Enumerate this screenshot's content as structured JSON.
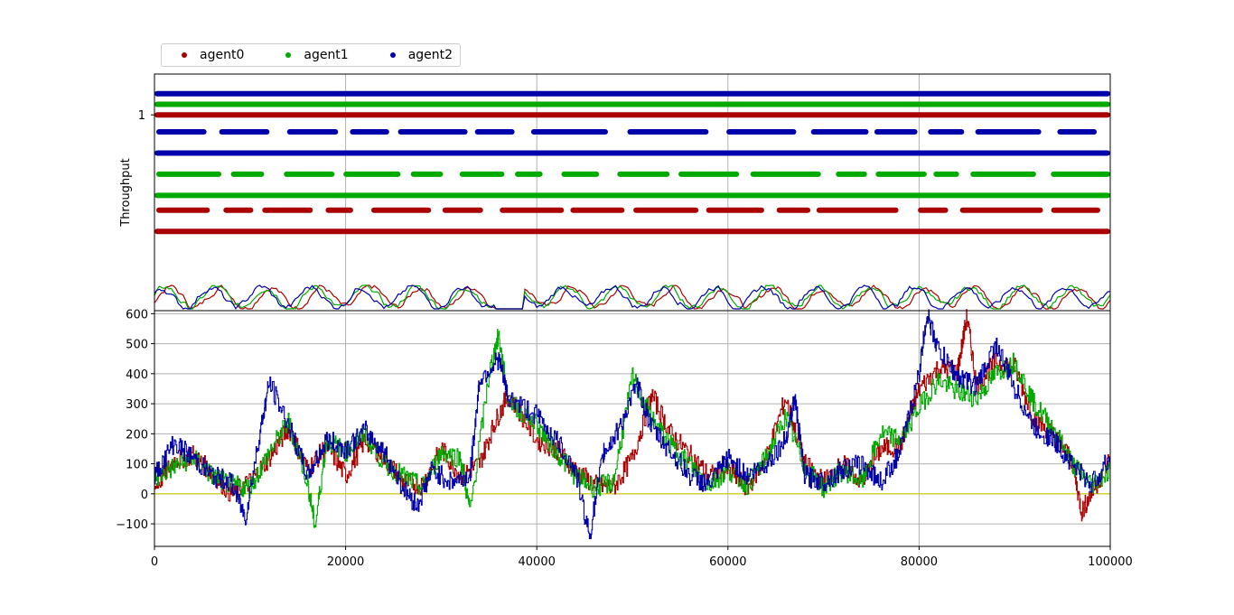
{
  "chart_data": [
    {
      "type": "scatter",
      "panel": "top",
      "ylabel": "Throughput",
      "ytick_labels": [
        "1"
      ],
      "legend": {
        "placement": "top-left, outside above",
        "entries": [
          "agent0",
          "agent1",
          "agent2"
        ]
      },
      "grid": true,
      "series": [
        {
          "name": "agent0",
          "color": "#aa0000",
          "rows": [
            {
              "y": 1.0,
              "dense": true
            },
            {
              "y": 0.55,
              "dense": false
            },
            {
              "y": 0.45,
              "dense": true
            }
          ]
        },
        {
          "name": "agent1",
          "color": "#00aa00",
          "rows": [
            {
              "y": 1.05,
              "dense": true
            },
            {
              "y": 0.72,
              "dense": false
            },
            {
              "y": 0.62,
              "dense": true
            }
          ]
        },
        {
          "name": "agent2",
          "color": "#0000aa",
          "rows": [
            {
              "y": 1.1,
              "dense": true
            },
            {
              "y": 0.92,
              "dense": false
            },
            {
              "y": 0.82,
              "dense": true
            }
          ]
        }
      ],
      "xlim": [
        0,
        100000
      ]
    },
    {
      "type": "line",
      "panel": "middle",
      "grid": true,
      "xlim": [
        0,
        100000
      ],
      "series": [
        {
          "name": "agent0",
          "color": "#aa0000"
        },
        {
          "name": "agent1",
          "color": "#00aa00"
        },
        {
          "name": "agent2",
          "color": "#0000aa"
        }
      ]
    },
    {
      "type": "line",
      "panel": "bottom",
      "xlim": [
        0,
        100000
      ],
      "ylim": [
        -175,
        610
      ],
      "grid": true,
      "x_ticks": [
        0,
        20000,
        40000,
        60000,
        80000,
        100000
      ],
      "x_tick_labels": [
        "0",
        "20000",
        "40000",
        "60000",
        "80000",
        "100000"
      ],
      "y_ticks": [
        -100,
        0,
        100,
        200,
        300,
        400,
        500,
        600
      ],
      "y_tick_labels": [
        "−100",
        "0",
        "100",
        "200",
        "300",
        "400",
        "500",
        "600"
      ],
      "baseline": {
        "color": "#cccc00",
        "value": 0
      },
      "series": [
        {
          "name": "agent0",
          "color": "#aa0000",
          "x": [
            0,
            2000,
            4000,
            6000,
            8000,
            10000,
            12000,
            14000,
            16000,
            18000,
            20000,
            22000,
            24000,
            26000,
            28000,
            30000,
            32000,
            34000,
            35500,
            37000,
            40000,
            42000,
            44000,
            46000,
            48000,
            50000,
            52000,
            54000,
            56000,
            58000,
            60000,
            62000,
            64000,
            66000,
            68000,
            70000,
            72000,
            74000,
            76000,
            78000,
            80000,
            82000,
            84000,
            85000,
            86000,
            88000,
            90000,
            92000,
            94000,
            96000,
            97000,
            98000,
            100000
          ],
          "y": [
            20,
            110,
            130,
            70,
            0,
            40,
            120,
            220,
            80,
            160,
            60,
            180,
            120,
            40,
            30,
            150,
            60,
            100,
            230,
            330,
            180,
            150,
            80,
            30,
            20,
            120,
            330,
            200,
            130,
            60,
            80,
            20,
            120,
            320,
            100,
            40,
            100,
            40,
            150,
            160,
            350,
            420,
            410,
            590,
            360,
            440,
            420,
            250,
            200,
            110,
            -60,
            0,
            120
          ]
        },
        {
          "name": "agent1",
          "color": "#00aa00",
          "x": [
            0,
            2000,
            4000,
            6000,
            8000,
            10000,
            12000,
            14000,
            16000,
            16800,
            18000,
            20000,
            22000,
            24000,
            26000,
            28000,
            30000,
            32000,
            33000,
            35000,
            36000,
            37000,
            40000,
            42000,
            44000,
            46000,
            48000,
            50000,
            52000,
            54000,
            56000,
            58000,
            60000,
            62000,
            64000,
            66000,
            68000,
            70000,
            72000,
            74000,
            76000,
            78000,
            80000,
            82000,
            84000,
            86000,
            88000,
            90000,
            92000,
            94000,
            96000,
            98000,
            100000
          ],
          "y": [
            50,
            90,
            120,
            60,
            30,
            20,
            140,
            240,
            40,
            -110,
            180,
            140,
            200,
            100,
            60,
            20,
            140,
            120,
            -60,
            400,
            530,
            310,
            230,
            140,
            60,
            20,
            40,
            390,
            250,
            160,
            100,
            30,
            80,
            30,
            120,
            260,
            90,
            20,
            80,
            40,
            200,
            180,
            290,
            380,
            340,
            320,
            400,
            440,
            300,
            220,
            100,
            30,
            80
          ]
        },
        {
          "name": "agent2",
          "color": "#0000aa",
          "x": [
            0,
            2000,
            4000,
            6000,
            8000,
            9500,
            11000,
            12000,
            14000,
            16000,
            18000,
            20000,
            22000,
            24000,
            26000,
            27500,
            29000,
            31000,
            33000,
            34000,
            36000,
            37000,
            40000,
            42000,
            44000,
            45500,
            47000,
            48000,
            50500,
            52000,
            54000,
            56000,
            58000,
            60000,
            62000,
            64000,
            66000,
            67000,
            68000,
            70000,
            72000,
            74000,
            76000,
            78000,
            80000,
            80800,
            82000,
            84000,
            86000,
            88000,
            90000,
            92000,
            94000,
            96000,
            98000,
            100000
          ],
          "y": [
            60,
            170,
            120,
            60,
            40,
            -80,
            200,
            370,
            230,
            60,
            180,
            150,
            210,
            140,
            20,
            -40,
            80,
            40,
            60,
            380,
            450,
            320,
            260,
            180,
            80,
            -140,
            140,
            180,
            360,
            220,
            140,
            60,
            30,
            120,
            60,
            100,
            180,
            320,
            60,
            40,
            80,
            100,
            40,
            140,
            400,
            600,
            480,
            390,
            360,
            500,
            350,
            220,
            180,
            100,
            30,
            120
          ]
        }
      ]
    }
  ]
}
